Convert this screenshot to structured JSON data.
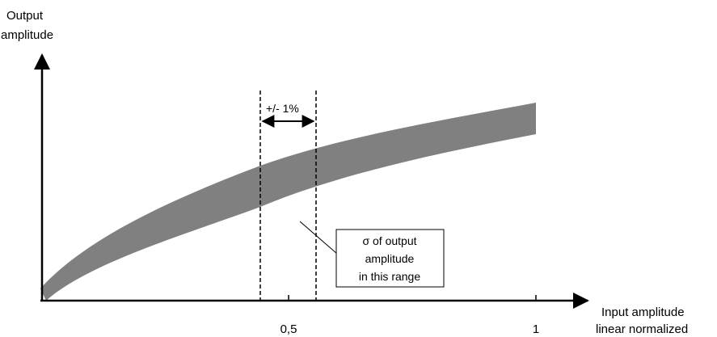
{
  "axes": {
    "y_label_line1": "Output",
    "y_label_line2": "amplitude",
    "x_label_line1": "Input amplitude",
    "x_label_line2": "linear normalized",
    "x_ticks": [
      "0,5",
      "1"
    ]
  },
  "range_marker": {
    "label": "+/- 1%"
  },
  "annotation_box": {
    "line1": "σ of output",
    "line2": "amplitude",
    "line3": "in this range"
  },
  "colors": {
    "band": "#808080",
    "axes": "#000000",
    "background": "#ffffff"
  }
}
